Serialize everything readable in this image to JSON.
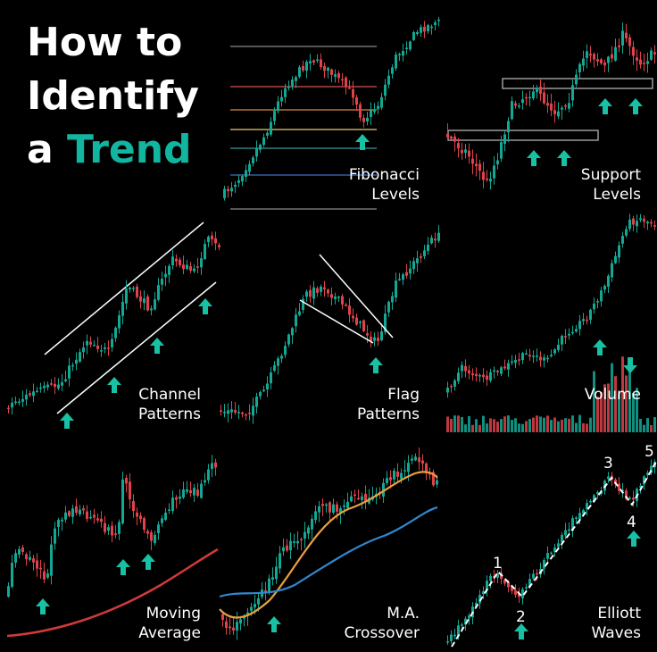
{
  "heading": {
    "line1": "How to",
    "line2": "Identify",
    "line3_prefix": "a ",
    "line3_accent": "Trend"
  },
  "panels": [
    {
      "id": "fibonacci",
      "line1": "Fibonacci",
      "line2": "Levels"
    },
    {
      "id": "support",
      "line1": "Support",
      "line2": "Levels"
    },
    {
      "id": "channel",
      "line1": "Channel",
      "line2": "Patterns"
    },
    {
      "id": "flag",
      "line1": "Flag",
      "line2": "Patterns"
    },
    {
      "id": "volume",
      "line1": "",
      "line2": "Volume"
    },
    {
      "id": "moving-average",
      "line1": "Moving",
      "line2": "Average"
    },
    {
      "id": "ma-crossover",
      "line1": "M.A.",
      "line2": "Crossover"
    },
    {
      "id": "elliott",
      "line1": "Elliott",
      "line2": "Waves"
    }
  ],
  "elliott_wave_labels": [
    "1",
    "2",
    "3",
    "4",
    "5"
  ],
  "colors": {
    "background": "#000000",
    "bullish": "#12a894",
    "bearish": "#e0424b",
    "accent": "#12b5a0",
    "arrow": "#18c0a4",
    "text": "#ffffff",
    "ma_slow": "#d23a3a",
    "ma_fast": "#e9a040",
    "ma_blue": "#2f88d0",
    "fib_levels": [
      "#8a8a8a",
      "#d95050",
      "#e08a40",
      "#e8d070",
      "#3a9a9a",
      "#3a6fc8",
      "#8a8a8a"
    ]
  },
  "icons": [
    "up-arrow-icon",
    "down-arrow-icon"
  ]
}
